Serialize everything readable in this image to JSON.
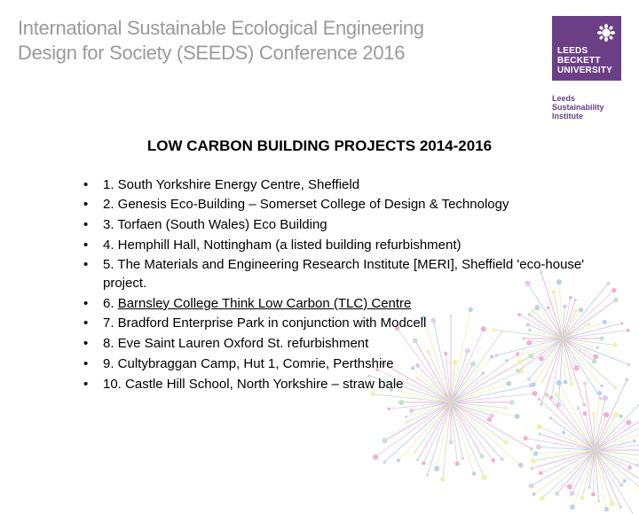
{
  "header": {
    "conference_title_line1": "International Sustainable Ecological Engineering",
    "conference_title_line2": "Design for Society (SEEDS) Conference 2016",
    "logo": {
      "background_color": "#6b3f86",
      "text_color": "#ffffff",
      "line1": "LEEDS",
      "line2": "BECKETT",
      "line3": "UNIVERSITY"
    },
    "sub_logo": {
      "line1": "Leeds Sustainability",
      "line2": "Institute",
      "text_color": "#6b3f86"
    }
  },
  "title": "LOW CARBON BUILDING PROJECTS 2014-2016",
  "items": [
    {
      "text": "1. South Yorkshire Energy Centre, Sheffield",
      "underline": false
    },
    {
      "text": "2. Genesis Eco-Building – Somerset College of Design & Technology",
      "underline": false
    },
    {
      "text": "3. Torfaen (South Wales) Eco Building",
      "underline": false
    },
    {
      "text": "4. Hemphill Hall, Nottingham (a listed building refurbishment)",
      "underline": false
    },
    {
      "text": "5. The Materials and Engineering Research Institute [MERI], Sheffield 'eco-house' project.",
      "underline": false
    },
    {
      "prefix": "6. ",
      "link": "Barnsley College Think Low Carbon (TLC) Centre",
      "underline": true
    },
    {
      "text": "7. Bradford Enterprise Park in conjunction with Modcell",
      "underline": false
    },
    {
      "text": "8. Eve Saint Lauren Oxford St. refurbishment",
      "underline": false
    },
    {
      "text": "9. Cultybraggan Camp, Hut 1, Comrie, Perthshire",
      "underline": false
    },
    {
      "text": "10. Castle Hill School, North Yorkshire  – straw bale",
      "underline": false
    }
  ],
  "styling": {
    "page_bg": "#ffffff",
    "title_fontsize": 17,
    "body_fontsize": 15,
    "conf_title_color": "#9a9a9a",
    "conf_title_fontsize": 22,
    "burst_colors": [
      "#e94e9c",
      "#7cc68d",
      "#f2d74a",
      "#5aa0d8",
      "#c390d4"
    ]
  }
}
